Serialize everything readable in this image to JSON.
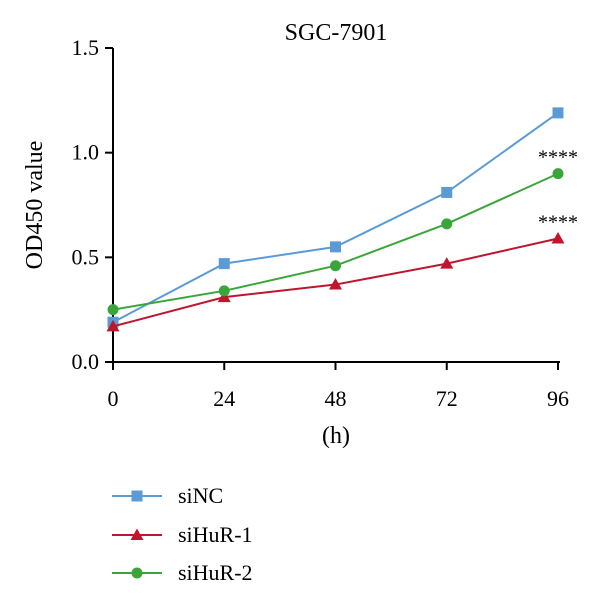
{
  "chart_data": {
    "type": "line",
    "title": "SGC-7901",
    "xlabel": "(h)",
    "ylabel": "OD450 value",
    "x": [
      0,
      24,
      48,
      72,
      96
    ],
    "x_tick_labels": [
      "0",
      "24",
      "48",
      "72",
      "96"
    ],
    "xlim": [
      0,
      96
    ],
    "y_ticks": [
      0.0,
      0.5,
      1.0,
      1.5
    ],
    "y_tick_labels": [
      "0.0",
      "0.5",
      "1.0",
      "1.5"
    ],
    "ylim": [
      0,
      1.5
    ],
    "grid": false,
    "legend_position": "bottom-left",
    "series": [
      {
        "name": "siNC",
        "marker": "square",
        "color": "#5b9bd5",
        "values": [
          0.19,
          0.47,
          0.55,
          0.81,
          1.19
        ]
      },
      {
        "name": "siHuR-1",
        "marker": "triangle",
        "color": "#c0152f",
        "values": [
          0.17,
          0.31,
          0.37,
          0.47,
          0.59
        ]
      },
      {
        "name": "siHuR-2",
        "marker": "circle",
        "color": "#3aa63a",
        "values": [
          0.25,
          0.34,
          0.46,
          0.66,
          0.9
        ]
      }
    ],
    "annotations": [
      {
        "text": "****",
        "x": 96,
        "y": 0.9
      },
      {
        "text": "****",
        "x": 96,
        "y": 0.59
      }
    ]
  }
}
